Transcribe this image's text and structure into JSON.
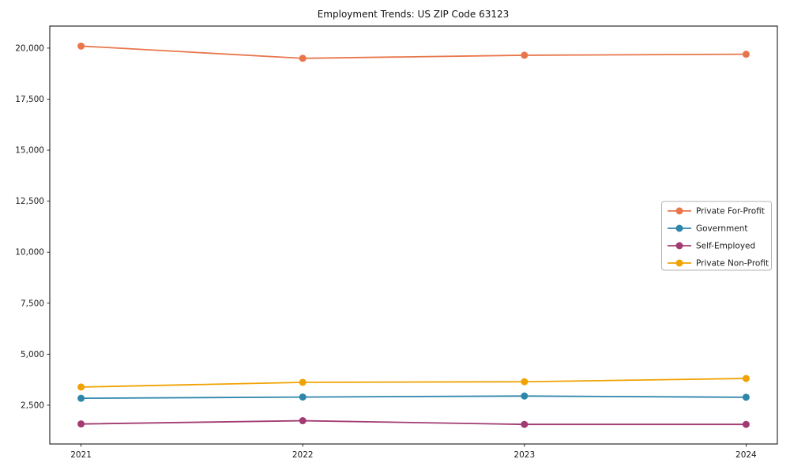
{
  "title": "Employment Trends: US ZIP Code 63123",
  "chart_data": {
    "type": "line",
    "title": "Employment Trends: US ZIP Code 63123",
    "xlabel": "",
    "ylabel": "",
    "x": [
      2021,
      2022,
      2023,
      2024
    ],
    "x_tick_labels": [
      "2021",
      "2022",
      "2023",
      "2024"
    ],
    "yticks": [
      2500,
      5000,
      7500,
      10000,
      12500,
      15000,
      17500,
      20000
    ],
    "ytick_labels": [
      "2,500",
      "5,000",
      "7,500",
      "10,000",
      "12,500",
      "15,000",
      "17,500",
      "20,000"
    ],
    "ylim": [
      600,
      21080
    ],
    "grid": false,
    "legend_position": "center-right",
    "series": [
      {
        "name": "Private For-Profit",
        "color": "#E8764B",
        "values": [
          20100,
          19500,
          19650,
          19700
        ]
      },
      {
        "name": "Government",
        "color": "#2E86AB",
        "values": [
          2840,
          2900,
          2950,
          2890
        ]
      },
      {
        "name": "Self-Employed",
        "color": "#A23B72",
        "values": [
          1580,
          1740,
          1560,
          1560
        ]
      },
      {
        "name": "Private Non-Profit",
        "color": "#F0A202",
        "values": [
          3390,
          3620,
          3650,
          3810
        ]
      }
    ]
  }
}
